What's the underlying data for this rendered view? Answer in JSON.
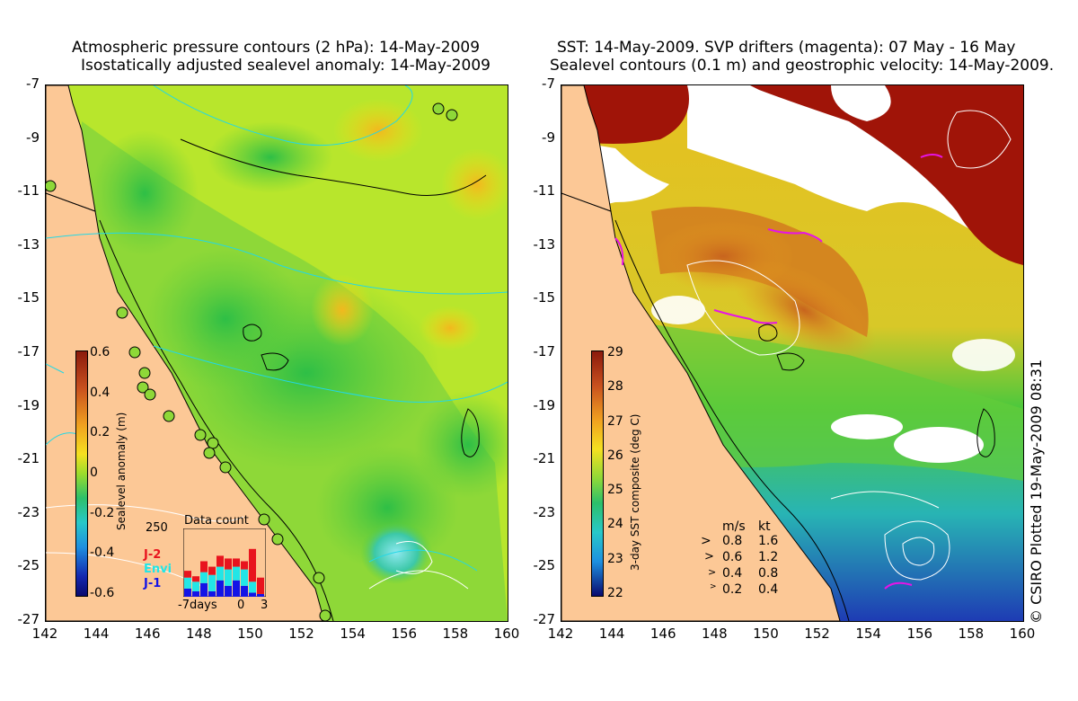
{
  "left_panel": {
    "title_line1": "Atmospheric pressure contours (2 hPa): 14-May-2009",
    "title_line2": "Isostatically adjusted sealevel anomaly: 14-May-2009",
    "colorbar": {
      "label": "Sealevel anomaly (m)",
      "ticks": [
        "0.6",
        "0.4",
        "0.2",
        "0",
        "-0.2",
        "-0.4",
        "-0.6"
      ],
      "range": [
        -0.6,
        0.6
      ]
    },
    "inset": {
      "title": "Data count",
      "ymax_label": "250",
      "legend": [
        {
          "name": "J-2",
          "color": "#e8141e"
        },
        {
          "name": "Envi",
          "color": "#22e6e6"
        },
        {
          "name": "J-1",
          "color": "#1414e6"
        }
      ],
      "x_labels": [
        "-7days",
        "0",
        "3"
      ],
      "bars": [
        {
          "j1": 30,
          "envi": 40,
          "j2": 25
        },
        {
          "j1": 20,
          "envi": 35,
          "j2": 20
        },
        {
          "j1": 50,
          "envi": 40,
          "j2": 40
        },
        {
          "j1": 20,
          "envi": 60,
          "j2": 30
        },
        {
          "j1": 60,
          "envi": 50,
          "j2": 40
        },
        {
          "j1": 40,
          "envi": 60,
          "j2": 40
        },
        {
          "j1": 60,
          "envi": 50,
          "j2": 30
        },
        {
          "j1": 40,
          "envi": 60,
          "j2": 30
        },
        {
          "j1": 15,
          "envi": 40,
          "j2": 120
        },
        {
          "j1": 10,
          "envi": 0,
          "j2": 60
        }
      ]
    }
  },
  "right_panel": {
    "title_line1": "SST: 14-May-2009. SVP drifters (magenta): 07 May - 16 May",
    "title_line2": "Sealevel contours (0.1 m) and geostrophic velocity: 14-May-2009.",
    "colorbar": {
      "label": "3-day SST composite (deg C)",
      "ticks": [
        "29",
        "28",
        "27",
        "26",
        "25",
        "24",
        "23",
        "22"
      ],
      "range": [
        22,
        29
      ]
    },
    "velocity_legend": {
      "header_ms": "m/s",
      "header_kt": "kt",
      "rows": [
        {
          "ms": "0.8",
          "kt": "1.6"
        },
        {
          "ms": "0.6",
          "kt": "1.2"
        },
        {
          "ms": "0.4",
          "kt": "0.8"
        },
        {
          "ms": "0.2",
          "kt": "0.4"
        }
      ]
    },
    "credit": "© CSIRO Plotted 19-May-2009 08:31"
  },
  "axes": {
    "y_ticks": [
      "-7",
      "-9",
      "-11",
      "-13",
      "-15",
      "-17",
      "-19",
      "-21",
      "-23",
      "-25",
      "-27"
    ],
    "x_ticks": [
      "142",
      "144",
      "146",
      "148",
      "150",
      "152",
      "154",
      "156",
      "158",
      "160"
    ],
    "lat_range": [
      -27,
      -7
    ],
    "lon_range": [
      142,
      160
    ]
  },
  "colors": {
    "land": "#fcc896",
    "cloud": "#ffffff",
    "sea_green": "#7cd84a",
    "contour_cyan": "#22d8e6"
  }
}
